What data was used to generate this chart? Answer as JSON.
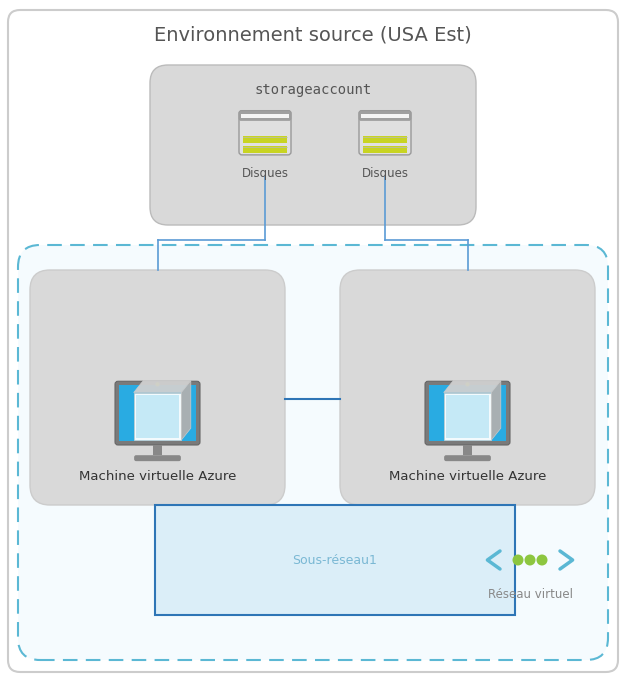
{
  "title": "Environnement source (USA Est)",
  "title_fontsize": 14,
  "bg_color": "#ffffff",
  "storage_label": "storageaccount",
  "disk_label": "Disques",
  "vm_label": "Machine virtuelle Azure",
  "subnet_label": "Sous-réseau1",
  "vnet_label": "Réseau virtuel",
  "line_color": "#5b9bd5",
  "vnet_edge_color": "#5bb8d4",
  "subnet_face_color": "#dbeef8",
  "subnet_edge_color": "#2e75b6",
  "vnet_face_color": "#f5fbfe",
  "storage_face_color": "#d9d9d9",
  "vm_face_color": "#d9d9d9",
  "dot_color": "#8dc63f",
  "arrow_color": "#5bb8d4"
}
